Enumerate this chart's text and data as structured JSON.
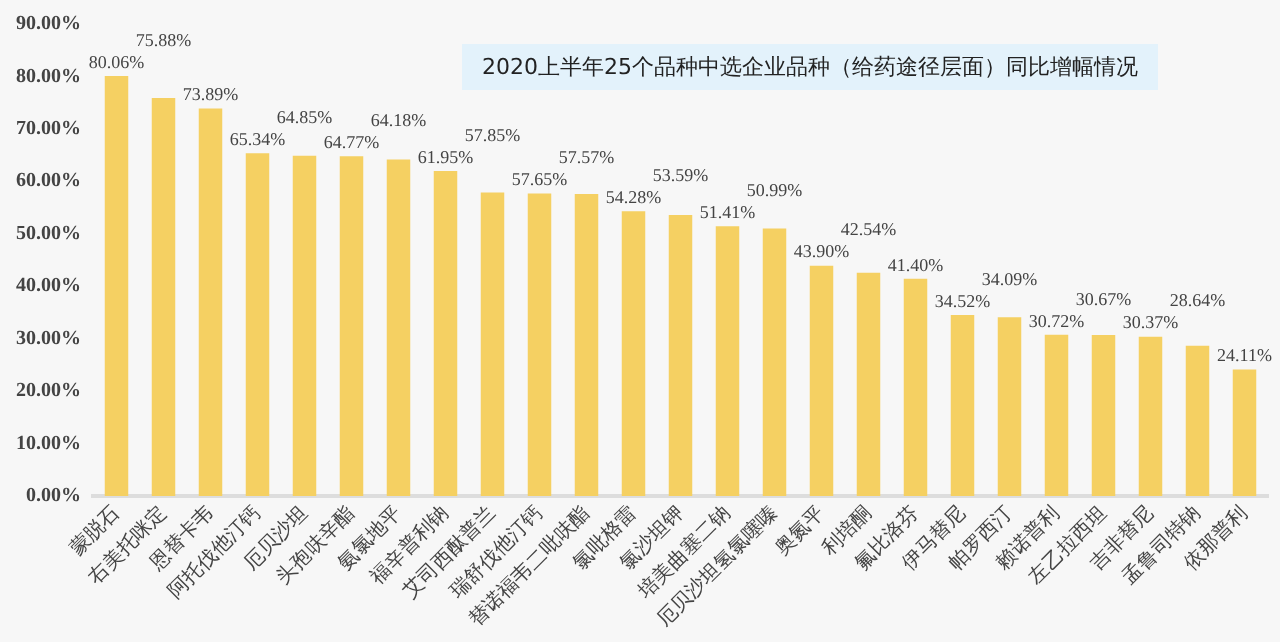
{
  "chart_data": {
    "type": "bar",
    "title": "2020上半年25个品种中选企业品种（给药途径层面）同比增幅情况",
    "categories": [
      "蒙脱石",
      "右美托咪定",
      "恩替卡韦",
      "阿托伐他汀钙",
      "厄贝沙坦",
      "头孢呋辛酯",
      "氨氯地平",
      "福辛普利钠",
      "艾司西酞普兰",
      "瑞舒伐他汀钙",
      "替诺福韦二吡呋酯",
      "氯吡格雷",
      "氯沙坦钾",
      "培美曲塞二钠",
      "厄贝沙坦氢氯噻嗪",
      "奥氮平",
      "利培酮",
      "氟比洛芬",
      "伊马替尼",
      "帕罗西汀",
      "赖诺普利",
      "左乙拉西坦",
      "吉非替尼",
      "孟鲁司特钠",
      "依那普利"
    ],
    "values": [
      80.06,
      75.88,
      73.89,
      65.34,
      64.85,
      64.77,
      64.18,
      61.95,
      57.85,
      57.65,
      57.57,
      54.28,
      53.59,
      51.41,
      50.99,
      43.9,
      42.54,
      41.4,
      34.52,
      34.09,
      30.72,
      30.67,
      30.37,
      28.64,
      24.11
    ],
    "value_labels": [
      "80.06%",
      "75.88%",
      "73.89%",
      "65.34%",
      "64.85%",
      "64.77%",
      "64.18%",
      "61.95%",
      "57.85%",
      "57.65%",
      "57.57%",
      "54.28%",
      "53.59%",
      "51.41%",
      "50.99%",
      "43.90%",
      "42.54%",
      "41.40%",
      "34.52%",
      "34.09%",
      "30.72%",
      "30.67%",
      "30.37%",
      "28.64%",
      "24.11%"
    ],
    "color": "#f5d062",
    "ylim": [
      0,
      90
    ],
    "yticks": [
      {
        "value": 0,
        "label": "0.00%"
      },
      {
        "value": 10,
        "label": "10.00%"
      },
      {
        "value": 20,
        "label": "20.00%"
      },
      {
        "value": 30,
        "label": "30.00%"
      },
      {
        "value": 40,
        "label": "40.00%"
      },
      {
        "value": 50,
        "label": "50.00%"
      },
      {
        "value": 60,
        "label": "60.00%"
      },
      {
        "value": 70,
        "label": "70.00%"
      },
      {
        "value": 80,
        "label": "80.00%"
      },
      {
        "value": 90,
        "label": "90.00%"
      }
    ],
    "grid": false,
    "legend": false
  }
}
